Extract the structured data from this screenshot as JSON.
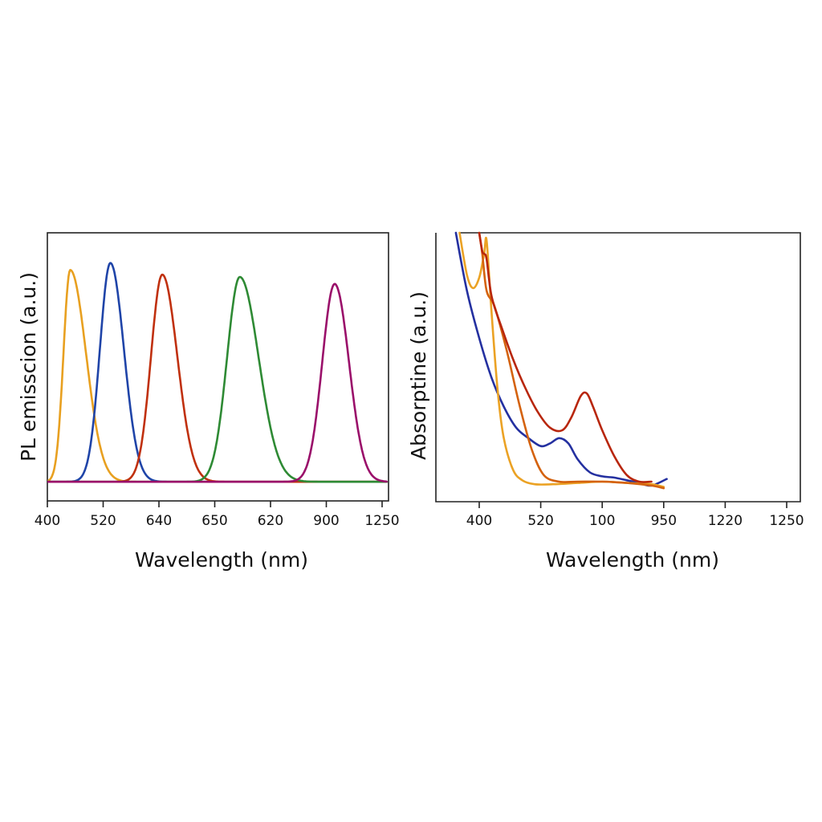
{
  "chart_data": [
    {
      "type": "line",
      "title": "",
      "xlabel": "Wavelength (nm)",
      "ylabel": "PL emisscion (a.u.)",
      "x_tick_labels": [
        "400",
        "520",
        "640",
        "650",
        "620",
        "900",
        "1250"
      ],
      "x_axis_note": "x positions below are expressed in tick-index units (0 = first tick '400', 6 = last tick '1250') because printed tick labels are non-monotonic",
      "xlim": [
        0,
        6
      ],
      "ylim": [
        0,
        1
      ],
      "grid": false,
      "legend": "none",
      "series": [
        {
          "name": "orange",
          "color": "#E8A020",
          "peak_x": 0.41,
          "peak_y": 0.93,
          "width_left": 0.18,
          "width_right": 0.42
        },
        {
          "name": "blue",
          "color": "#1F44A8",
          "peak_x": 1.13,
          "peak_y": 0.96,
          "width_left": 0.28,
          "width_right": 0.36
        },
        {
          "name": "red",
          "color": "#C0300E",
          "peak_x": 2.06,
          "peak_y": 0.91,
          "width_left": 0.3,
          "width_right": 0.4
        },
        {
          "name": "green",
          "color": "#2E8A34",
          "peak_x": 3.45,
          "peak_y": 0.9,
          "width_left": 0.34,
          "width_right": 0.5
        },
        {
          "name": "purple",
          "color": "#9A0F6A",
          "peak_x": 5.15,
          "peak_y": 0.87,
          "width_left": 0.33,
          "width_right": 0.38
        }
      ]
    },
    {
      "type": "line",
      "title": "",
      "xlabel": "Wavelength (nm)",
      "ylabel": "Absorptine (a.u.)",
      "x_tick_labels": [
        "400",
        "520",
        "100",
        "950",
        "1220",
        "1250"
      ],
      "x_axis_note": "x positions below are in tick-index units (0 = tick '400', 5 = tick '1250'); plot extends 0.7 tick-spacings left of the first tick",
      "xlim": [
        -0.7,
        5.2
      ],
      "ylim": [
        0,
        1
      ],
      "grid": false,
      "legend": "none",
      "series": [
        {
          "name": "blue",
          "color": "#2430A0",
          "points": [
            [
              -0.38,
              1.0
            ],
            [
              -0.2,
              0.78
            ],
            [
              0,
              0.6
            ],
            [
              0.2,
              0.45
            ],
            [
              0.4,
              0.34
            ],
            [
              0.6,
              0.26
            ],
            [
              0.8,
              0.22
            ],
            [
              1.0,
              0.19
            ],
            [
              1.15,
              0.2
            ],
            [
              1.3,
              0.22
            ],
            [
              1.45,
              0.2
            ],
            [
              1.6,
              0.14
            ],
            [
              1.8,
              0.09
            ],
            [
              2.0,
              0.075
            ],
            [
              2.2,
              0.07
            ],
            [
              2.4,
              0.06
            ],
            [
              2.6,
              0.05
            ],
            [
              2.8,
              0.04
            ],
            [
              3.05,
              0.065
            ]
          ]
        },
        {
          "name": "amber",
          "color": "#EBA224",
          "points": [
            [
              -0.32,
              1.0
            ],
            [
              -0.2,
              0.84
            ],
            [
              -0.1,
              0.79
            ],
            [
              0.0,
              0.83
            ],
            [
              0.08,
              0.92
            ],
            [
              0.12,
              0.97
            ],
            [
              0.2,
              0.7
            ],
            [
              0.3,
              0.4
            ],
            [
              0.4,
              0.22
            ],
            [
              0.55,
              0.1
            ],
            [
              0.7,
              0.06
            ],
            [
              0.9,
              0.045
            ],
            [
              1.2,
              0.045
            ],
            [
              1.6,
              0.05
            ],
            [
              2.0,
              0.055
            ],
            [
              2.4,
              0.05
            ],
            [
              2.8,
              0.045
            ],
            [
              3.0,
              0.035
            ]
          ]
        },
        {
          "name": "dark-orange",
          "color": "#D4620E",
          "points": [
            [
              0.0,
              1.0
            ],
            [
              0.05,
              0.92
            ],
            [
              0.12,
              0.78
            ],
            [
              0.25,
              0.72
            ],
            [
              0.45,
              0.55
            ],
            [
              0.65,
              0.35
            ],
            [
              0.85,
              0.18
            ],
            [
              1.05,
              0.08
            ],
            [
              1.3,
              0.055
            ],
            [
              1.6,
              0.055
            ],
            [
              2.0,
              0.055
            ],
            [
              2.4,
              0.05
            ],
            [
              2.8,
              0.04
            ],
            [
              3.0,
              0.03
            ]
          ]
        },
        {
          "name": "red",
          "color": "#B8260C",
          "points": [
            [
              0.0,
              1.0
            ],
            [
              0.05,
              0.93
            ],
            [
              0.08,
              0.92
            ],
            [
              0.12,
              0.9
            ],
            [
              0.2,
              0.76
            ],
            [
              0.35,
              0.65
            ],
            [
              0.55,
              0.52
            ],
            [
              0.75,
              0.41
            ],
            [
              0.95,
              0.32
            ],
            [
              1.15,
              0.26
            ],
            [
              1.35,
              0.25
            ],
            [
              1.5,
              0.3
            ],
            [
              1.65,
              0.38
            ],
            [
              1.75,
              0.39
            ],
            [
              1.85,
              0.34
            ],
            [
              2.0,
              0.25
            ],
            [
              2.2,
              0.15
            ],
            [
              2.4,
              0.08
            ],
            [
              2.6,
              0.055
            ],
            [
              2.8,
              0.055
            ]
          ]
        }
      ]
    }
  ]
}
